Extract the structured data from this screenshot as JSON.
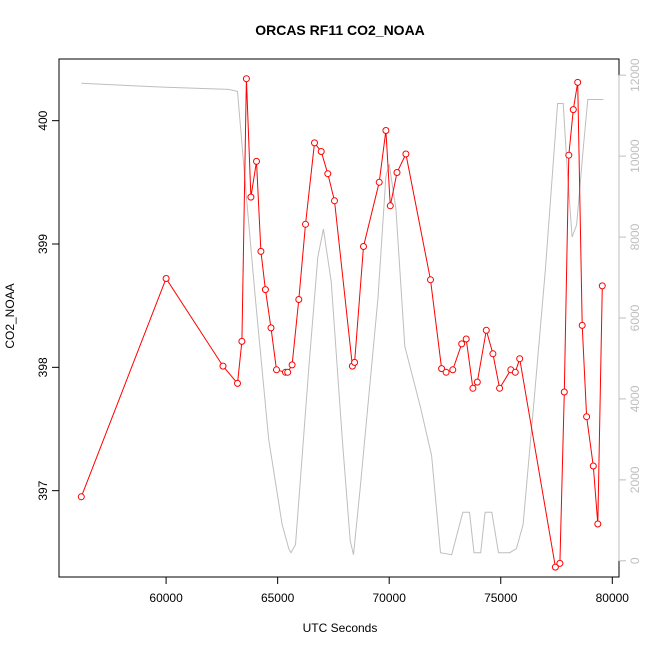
{
  "chart_data": {
    "type": "line",
    "title": "ORCAS RF11 CO2_NOAA",
    "xlabel": "UTC Seconds",
    "ylabel": "CO2_NOAA",
    "xlim": [
      55200,
      80300
    ],
    "ylim": [
      396.3,
      400.5
    ],
    "y2lim": [
      -400,
      12400
    ],
    "x_ticks": [
      60000,
      65000,
      70000,
      75000,
      80000
    ],
    "y_ticks": [
      397,
      398,
      399,
      400
    ],
    "y2_ticks": [
      0,
      2000,
      4000,
      6000,
      8000,
      10000,
      12000
    ],
    "colors": {
      "co2": "#ff0000",
      "altitude": "#bebebe",
      "axes": "#000000"
    },
    "series": [
      {
        "color": "#ff0000",
        "markers": true,
        "x": [
          56200,
          60000,
          62550,
          63200,
          63400,
          63600,
          63800,
          64050,
          64250,
          64450,
          64700,
          64950,
          65350,
          65450,
          65650,
          65950,
          66250,
          66650,
          66950,
          67250,
          67550,
          68350,
          68450,
          68850,
          69550,
          69850,
          70050,
          70350,
          70750,
          71850,
          72350,
          72550,
          72850,
          73250,
          73450,
          73750,
          73950,
          74350,
          74650,
          74950,
          75450,
          75650,
          75850,
          77450,
          77650,
          77850,
          78050,
          78250,
          78450,
          78650,
          78850,
          79150,
          79350,
          79550
        ],
        "values": [
          396.95,
          398.72,
          398.01,
          397.87,
          398.21,
          400.34,
          399.38,
          399.67,
          398.94,
          398.63,
          398.32,
          397.98,
          397.96,
          397.96,
          398.02,
          398.55,
          399.16,
          399.82,
          399.75,
          399.57,
          399.35,
          398.01,
          398.04,
          398.98,
          399.5,
          399.92,
          399.31,
          399.58,
          399.73,
          398.71,
          397.99,
          397.96,
          397.98,
          398.19,
          398.23,
          397.83,
          397.88,
          398.3,
          398.11,
          397.83,
          397.98,
          397.96,
          398.07,
          396.38,
          396.41,
          397.8,
          399.72,
          400.09,
          400.31,
          398.34,
          397.6,
          397.2,
          396.73,
          398.66
        ]
      },
      {
        "color": "#bebebe",
        "markers": false,
        "axis": "right",
        "x": [
          56200,
          60000,
          62800,
          63200,
          63600,
          64000,
          64600,
          65200,
          65500,
          65600,
          65800,
          66400,
          66800,
          67050,
          67400,
          67900,
          68250,
          68400,
          68700,
          69500,
          69850,
          70000,
          70300,
          70700,
          71400,
          71900,
          72300,
          72800,
          73300,
          73600,
          73800,
          74100,
          74300,
          74600,
          74900,
          75400,
          75700,
          76000,
          76500,
          77000,
          77550,
          77800,
          78000,
          78200,
          78400,
          78700,
          78900,
          79200,
          79600
        ],
        "values": [
          11800,
          11700,
          11650,
          11600,
          9000,
          6500,
          3000,
          900,
          300,
          200,
          400,
          4800,
          7500,
          8200,
          6900,
          3000,
          500,
          150,
          1800,
          6500,
          9500,
          9800,
          8700,
          5300,
          3800,
          2600,
          200,
          150,
          1200,
          1200,
          200,
          200,
          1200,
          1200,
          200,
          200,
          300,
          900,
          4000,
          7200,
          11300,
          11300,
          9500,
          8000,
          8300,
          10200,
          11400,
          11400,
          11400
        ]
      }
    ]
  }
}
